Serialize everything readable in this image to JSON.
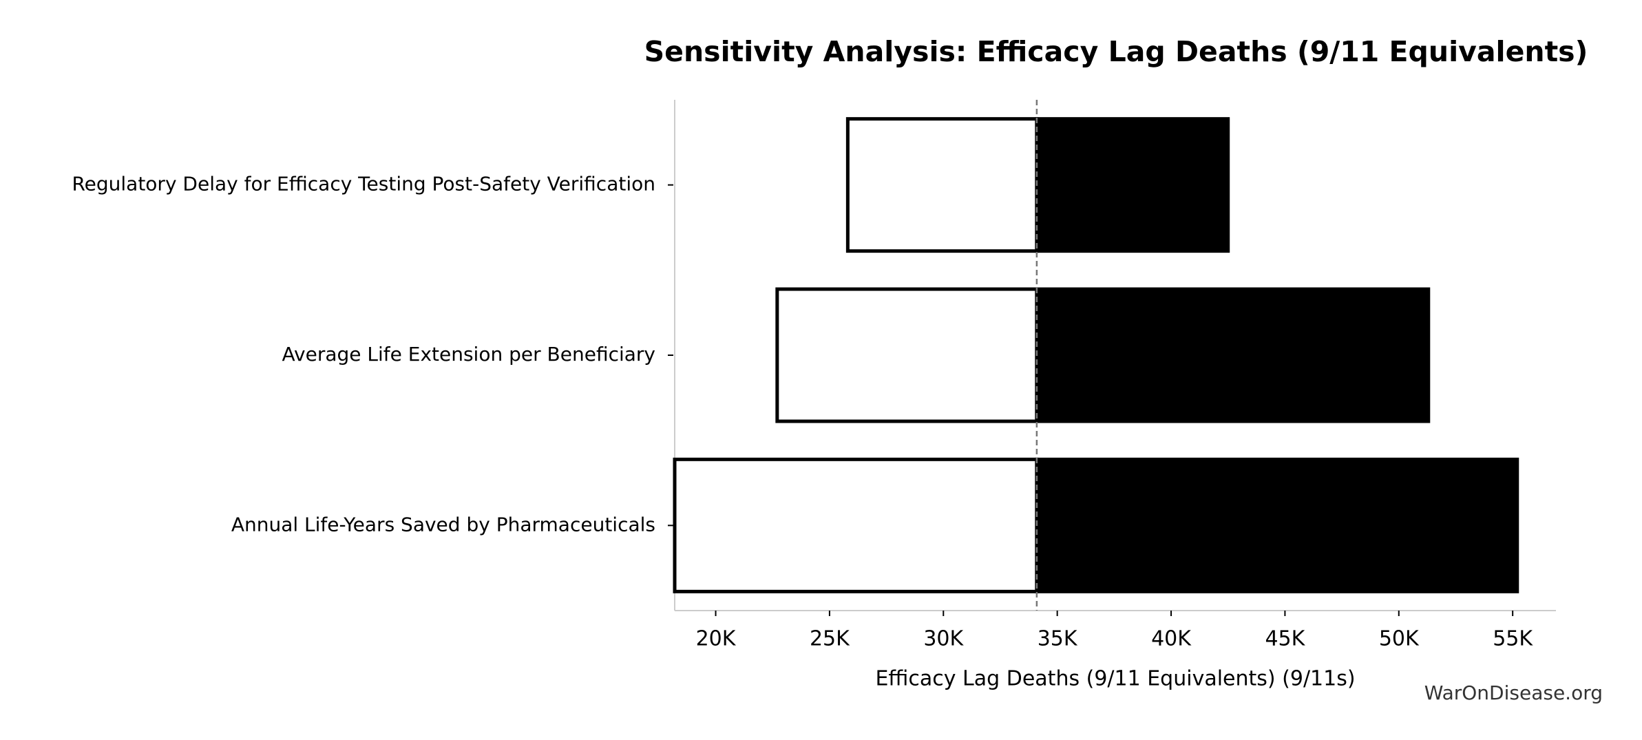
{
  "chart_data": {
    "type": "tornado",
    "title": "Sensitivity Analysis: Efficacy Lag Deaths (9/11 Equivalents)",
    "x_label": "Efficacy Lag Deaths (9/11 Equivalents) (9/11s)",
    "watermark": "WarOnDisease.org",
    "categories": [
      "Regulatory Delay for Efficacy Testing Post-Safety Verification",
      "Average Life Extension per Beneficiary",
      "Annual Life-Years Saved by Pharmaceuticals"
    ],
    "baseline": 34100,
    "series": [
      {
        "color": "#ffffff",
        "edge": "#000000",
        "values": [
          25800,
          22700,
          18200
        ]
      },
      {
        "color": "#000000",
        "edge": "#000000",
        "values": [
          42500,
          51300,
          55200
        ]
      }
    ],
    "xlim": [
      18200,
      56900
    ],
    "xticks": [
      {
        "value": 20000,
        "label": "20K"
      },
      {
        "value": 25000,
        "label": "25K"
      },
      {
        "value": 30000,
        "label": "30K"
      },
      {
        "value": 35000,
        "label": "35K"
      },
      {
        "value": 40000,
        "label": "40K"
      },
      {
        "value": 45000,
        "label": "45K"
      },
      {
        "value": 50000,
        "label": "50K"
      },
      {
        "value": 55000,
        "label": "55K"
      }
    ]
  }
}
